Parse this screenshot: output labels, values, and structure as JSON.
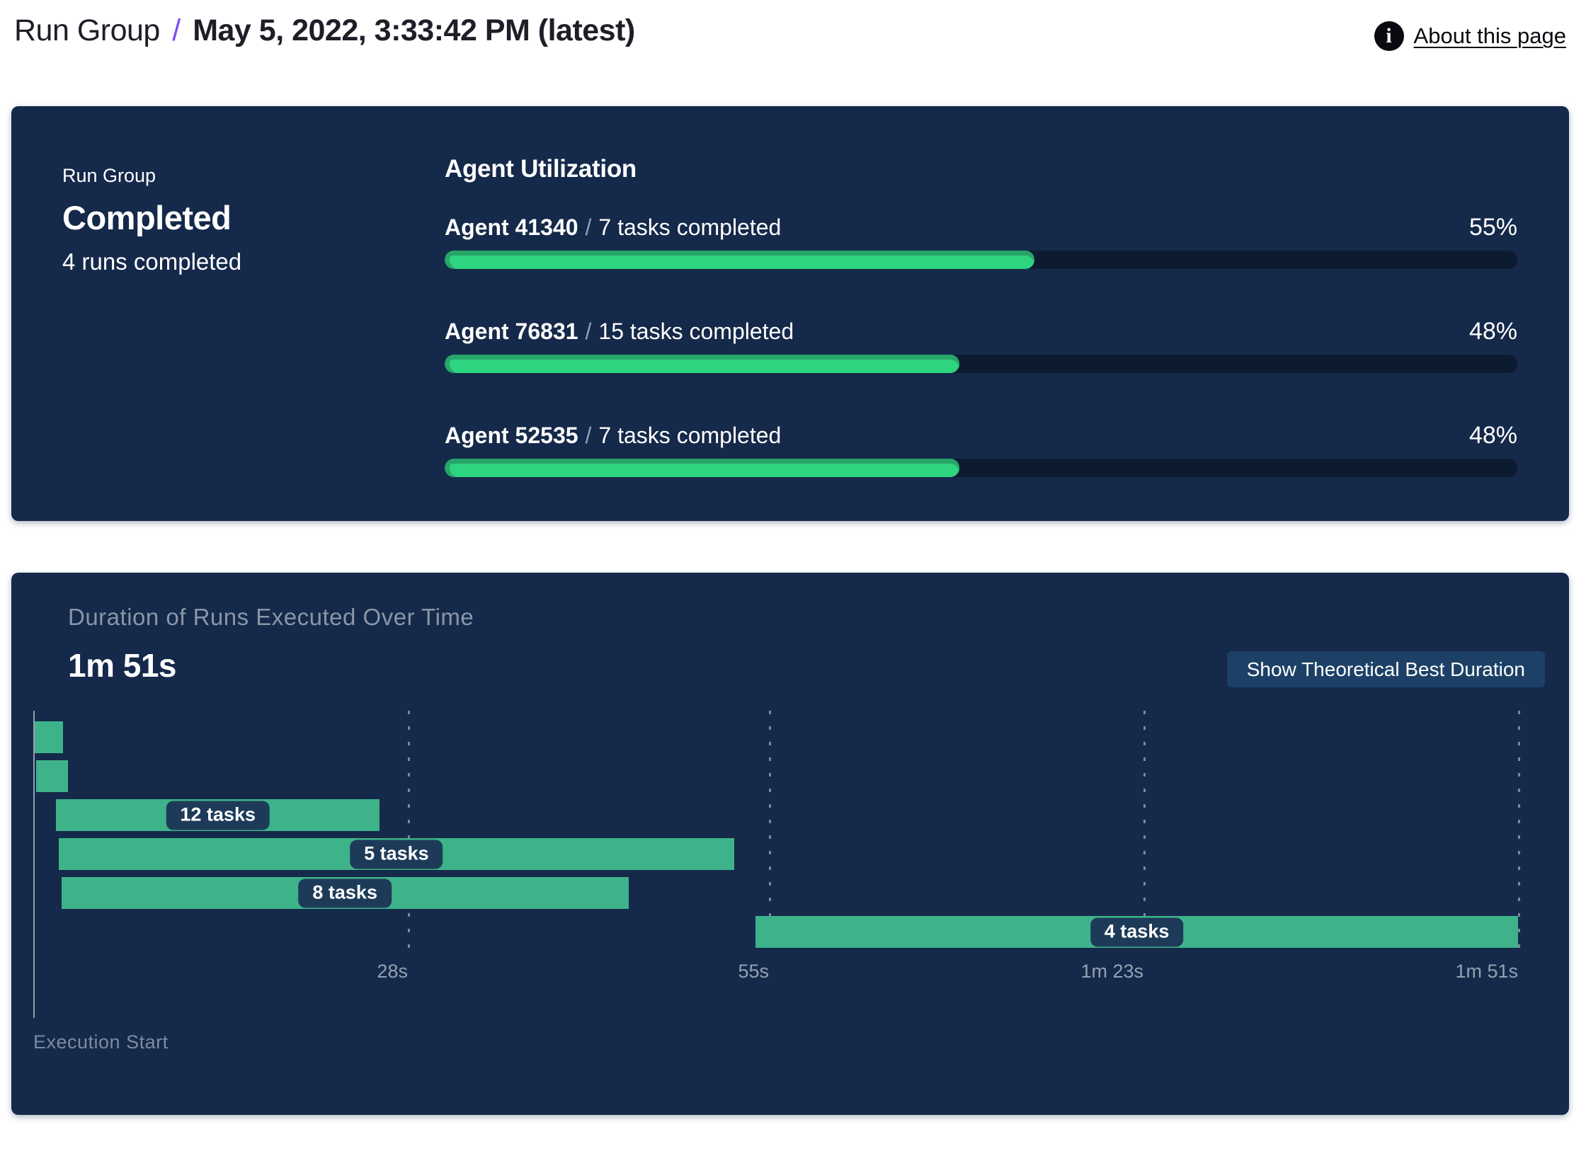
{
  "header": {
    "breadcrumb_root": "Run Group",
    "separator": "/",
    "title": "May 5, 2022, 3:33:42 PM (latest)",
    "about_link": "About this page"
  },
  "summary_panel": {
    "label": "Run Group",
    "status": "Completed",
    "runs_completed": "4 runs completed",
    "utilization": {
      "heading": "Agent Utilization",
      "agents": [
        {
          "name": "Agent 41340",
          "separator": "/",
          "tasks": "7 tasks completed",
          "percent": 55,
          "percent_label": "55%"
        },
        {
          "name": "Agent 76831",
          "separator": "/",
          "tasks": "15 tasks completed",
          "percent": 48,
          "percent_label": "48%"
        },
        {
          "name": "Agent 52535",
          "separator": "/",
          "tasks": "7 tasks completed",
          "percent": 48,
          "percent_label": "48%"
        }
      ]
    }
  },
  "duration_panel": {
    "title": "Duration of Runs Executed Over Time",
    "total_duration": "1m 51s",
    "button_label": "Show Theoretical Best Duration",
    "execution_start_label": "Execution Start"
  },
  "chart_data": {
    "type": "bar",
    "subtype": "gantt-horizontal",
    "title": "Duration of Runs Executed Over Time",
    "total_duration_label": "1m 51s",
    "xlabel": "Execution Start",
    "x_unit": "seconds",
    "x_range_s": [
      0,
      111
    ],
    "grid": true,
    "bars": [
      {
        "row": 1,
        "start_s": 0.1,
        "end_s": 2.2,
        "label": ""
      },
      {
        "row": 2,
        "start_s": 0.2,
        "end_s": 2.6,
        "label": ""
      },
      {
        "row": 3,
        "start_s": 1.7,
        "end_s": 25.9,
        "label": "12 tasks"
      },
      {
        "row": 4,
        "start_s": 1.9,
        "end_s": 52.4,
        "label": "5 tasks"
      },
      {
        "row": 5,
        "start_s": 2.1,
        "end_s": 44.5,
        "label": "8 tasks"
      },
      {
        "row": 6,
        "start_s": 54.0,
        "end_s": 111.0,
        "label": "4 tasks"
      }
    ],
    "x_ticks": [
      {
        "s": 28,
        "label": "28s"
      },
      {
        "s": 55,
        "label": "55s"
      },
      {
        "s": 83,
        "label": "1m 23s"
      },
      {
        "s": 111,
        "label": "1m 51s"
      }
    ]
  },
  "colors": {
    "header_text": "#1e1e28",
    "accent_slash": "#7a4bf5",
    "panel_bg": "#15294a",
    "track_bg": "#0d1b30",
    "progress_fill": "#2ed47f",
    "progress_rim": "#28a569",
    "gantt_bar": "#3eb38a",
    "pill_bg": "#1d3b59",
    "button_bg": "#1d4166",
    "muted_text": "#8a96a8",
    "tick_text": "#93a1b5",
    "exec_text": "#7d8ba1",
    "axis_line": "#a9b4c4",
    "grid_dash": "rgba(188,198,214,0.6)"
  }
}
